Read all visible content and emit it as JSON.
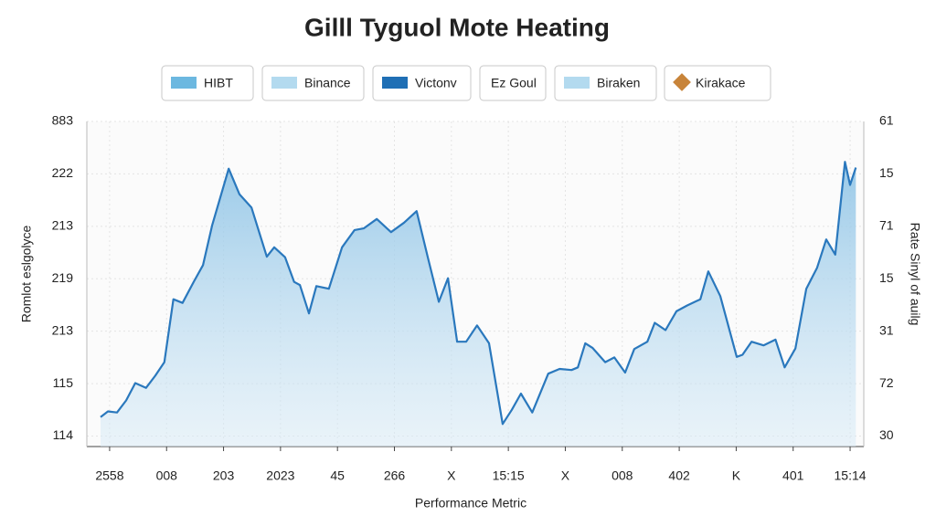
{
  "chart_data": {
    "type": "area",
    "title": "Gilll Tyguol Mote Heating",
    "x_label": "Performance Metric",
    "y_label": "Romlot eslgolyce",
    "y2_label": "Rate Sinyl of auilg",
    "legend": [
      {
        "name": "HIBT",
        "color": "#6cb8e0"
      },
      {
        "name": "Binance",
        "color": "#b3daef"
      },
      {
        "name": "Victonv",
        "color": "#1f6fb5"
      },
      {
        "name": "Ez Goul"
      },
      {
        "name": "Biraken",
        "color": "#b3daef"
      },
      {
        "name": "Kirakace",
        "color": "#c8843a"
      }
    ],
    "color": "#2a78bd",
    "fill": "#bcdcf0",
    "grid": true,
    "xlim": [
      -0.4,
      13.24
    ],
    "xticks": [
      {
        "value": 0,
        "label": "2558"
      },
      {
        "value": 1,
        "label": "008"
      },
      {
        "value": 2,
        "label": "203"
      },
      {
        "value": 3,
        "label": "2023"
      },
      {
        "value": 4,
        "label": "45"
      },
      {
        "value": 5,
        "label": "266"
      },
      {
        "value": 6,
        "label": "X"
      },
      {
        "value": 7,
        "label": "15:15"
      },
      {
        "value": 8,
        "label": "X"
      },
      {
        "value": 9,
        "label": "008"
      },
      {
        "value": 10,
        "label": "402"
      },
      {
        "value": 11,
        "label": "K"
      },
      {
        "value": 12,
        "label": "401"
      },
      {
        "value": 13,
        "label": "15:14"
      }
    ],
    "ylim": [
      -0.2,
      6
    ],
    "yticks": [
      {
        "value": 0,
        "label": "114"
      },
      {
        "value": 1,
        "label": "115"
      },
      {
        "value": 2,
        "label": "213"
      },
      {
        "value": 3,
        "label": "219"
      },
      {
        "value": 4,
        "label": "213"
      },
      {
        "value": 5,
        "label": "222"
      },
      {
        "value": 6,
        "label": "883"
      }
    ],
    "y2lim": [
      -0.2,
      6
    ],
    "y2ticks": [
      {
        "value": 0,
        "label": "30"
      },
      {
        "value": 1,
        "label": "72"
      },
      {
        "value": 2,
        "label": "31"
      },
      {
        "value": 3,
        "label": "15"
      },
      {
        "value": 4,
        "label": "71"
      },
      {
        "value": 5,
        "label": "15"
      },
      {
        "value": 6,
        "label": "61"
      }
    ],
    "x": [
      -0.16,
      -0.03,
      0.13,
      0.29,
      0.45,
      0.64,
      0.8,
      0.96,
      1.12,
      1.28,
      1.48,
      1.64,
      1.8,
      2.09,
      2.28,
      2.49,
      2.76,
      2.89,
      3.08,
      3.24,
      3.34,
      3.5,
      3.63,
      3.85,
      4.08,
      4.3,
      4.46,
      4.69,
      4.94,
      5.17,
      5.39,
      5.59,
      5.78,
      5.94,
      6.1,
      6.26,
      6.45,
      6.66,
      6.9,
      7.06,
      7.22,
      7.42,
      7.7,
      7.9,
      8.11,
      8.22,
      8.35,
      8.48,
      8.7,
      8.86,
      9.05,
      9.21,
      9.44,
      9.57,
      9.76,
      9.95,
      10.14,
      10.37,
      10.51,
      10.72,
      11.01,
      11.11,
      11.27,
      11.48,
      11.69,
      11.85,
      12.04,
      12.23,
      12.42,
      12.58,
      12.74,
      12.91,
      13.0,
      13.1
    ],
    "values": [
      0.36,
      0.47,
      0.45,
      0.68,
      1.01,
      0.92,
      1.15,
      1.41,
      2.61,
      2.54,
      2.95,
      3.26,
      4.02,
      5.1,
      4.61,
      4.36,
      3.42,
      3.6,
      3.41,
      2.94,
      2.88,
      2.34,
      2.86,
      2.81,
      3.6,
      3.93,
      3.96,
      4.14,
      3.89,
      4.07,
      4.29,
      3.39,
      2.56,
      3.01,
      1.8,
      1.8,
      2.11,
      1.77,
      0.23,
      0.5,
      0.81,
      0.45,
      1.19,
      1.28,
      1.26,
      1.31,
      1.77,
      1.68,
      1.41,
      1.5,
      1.21,
      1.66,
      1.8,
      2.16,
      2.02,
      2.38,
      2.49,
      2.61,
      3.14,
      2.67,
      1.51,
      1.55,
      1.8,
      1.73,
      1.84,
      1.31,
      1.67,
      2.81,
      3.21,
      3.75,
      3.46,
      5.23,
      4.79,
      5.12
    ]
  }
}
